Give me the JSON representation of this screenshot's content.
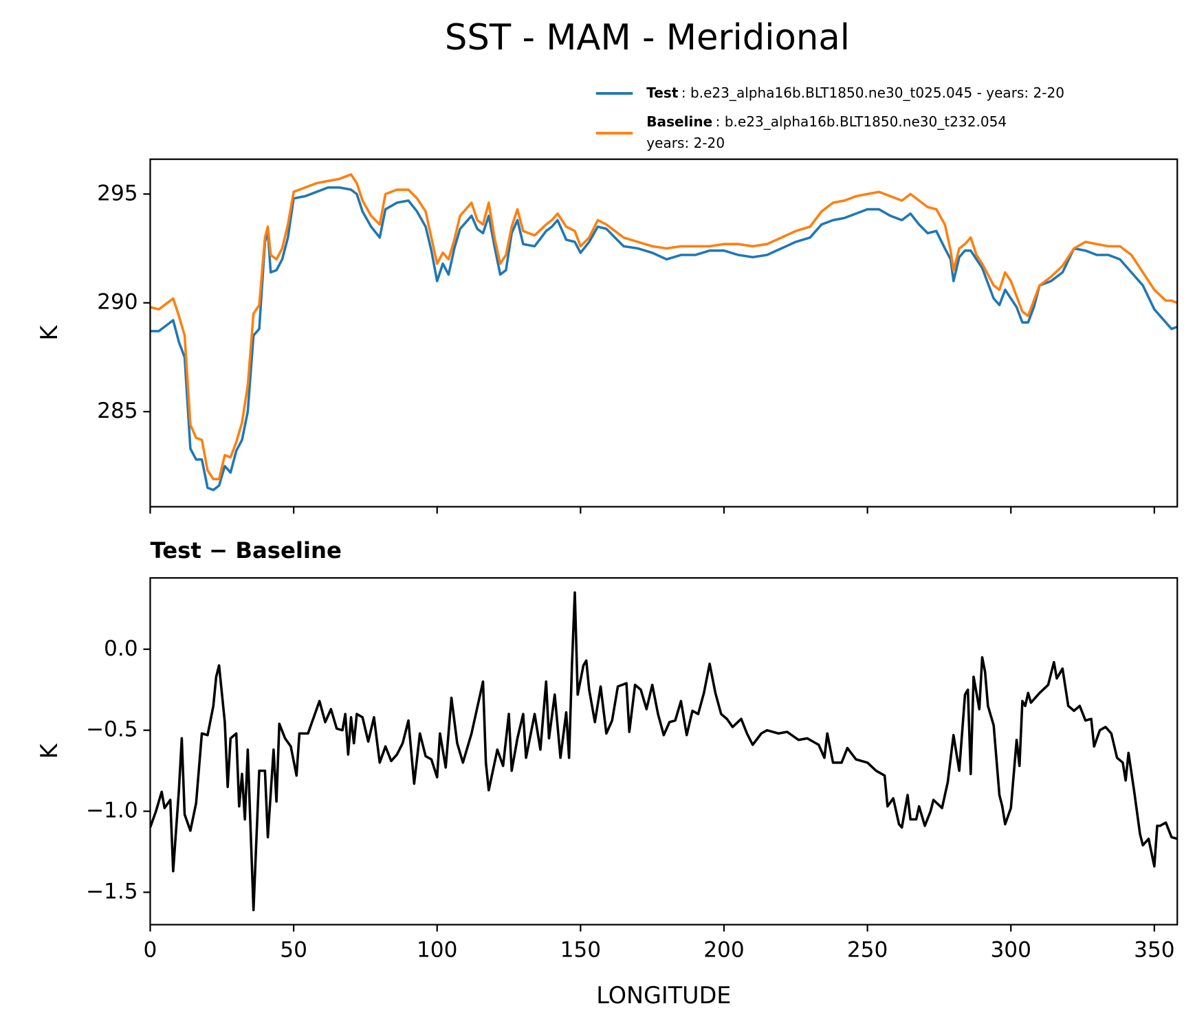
{
  "title": "SST - MAM - Meridional",
  "chart_data": [
    {
      "type": "line",
      "ylabel": "K",
      "xlim": [
        0,
        358
      ],
      "xticks": [
        0,
        50,
        100,
        150,
        200,
        250,
        300,
        350
      ],
      "show_xticklabels": false,
      "ylim": [
        280.63,
        296.6
      ],
      "yticks": [
        285,
        290,
        295
      ],
      "x": [
        0,
        3,
        6,
        8,
        10,
        12,
        14,
        16,
        18,
        20,
        22,
        24,
        26,
        28,
        30,
        32,
        34,
        36,
        38,
        40,
        41,
        42,
        44,
        46,
        48,
        50,
        54,
        58,
        62,
        66,
        70,
        72,
        74,
        77,
        80,
        82,
        86,
        90,
        93,
        96,
        98,
        100,
        102,
        104,
        106,
        108,
        112,
        114,
        116,
        118,
        120,
        122,
        124,
        126,
        128,
        130,
        134,
        138,
        140,
        142,
        145,
        148,
        150,
        153,
        156,
        159,
        162,
        165,
        170,
        175,
        180,
        185,
        190,
        195,
        200,
        205,
        210,
        215,
        220,
        225,
        230,
        234,
        238,
        242,
        246,
        250,
        254,
        258,
        262,
        265,
        268,
        271,
        274,
        277,
        279,
        280,
        282,
        284,
        286,
        288,
        290,
        292,
        294,
        296,
        298,
        300,
        302,
        304,
        306,
        308,
        310,
        314,
        318,
        322,
        326,
        330,
        334,
        338,
        342,
        346,
        350,
        354,
        356,
        358
      ],
      "series": [
        {
          "name": "Test",
          "label_lines": [
            ": b.e23_alpha16b.BLT1850.ne30_t025.045 - years: 2-20"
          ],
          "color": "#1f77b4",
          "values": [
            288.7,
            288.7,
            289.0,
            289.2,
            288.2,
            287.5,
            283.3,
            282.8,
            282.8,
            281.5,
            281.4,
            281.6,
            282.5,
            282.2,
            283.2,
            283.7,
            285.0,
            288.5,
            288.8,
            292.8,
            293.3,
            291.4,
            291.5,
            292.0,
            293.0,
            294.8,
            294.9,
            295.1,
            295.3,
            295.3,
            295.2,
            295.0,
            294.2,
            293.5,
            293.0,
            294.3,
            294.6,
            294.7,
            294.2,
            293.5,
            292.4,
            291.0,
            291.8,
            291.3,
            292.5,
            293.4,
            294.0,
            293.4,
            293.2,
            294.0,
            292.6,
            291.3,
            291.5,
            293.2,
            293.8,
            292.7,
            292.6,
            293.3,
            293.5,
            293.8,
            292.9,
            292.8,
            292.3,
            292.8,
            293.5,
            293.4,
            293.0,
            292.6,
            292.5,
            292.3,
            292.0,
            292.2,
            292.2,
            292.4,
            292.4,
            292.2,
            292.1,
            292.2,
            292.5,
            292.8,
            293.0,
            293.6,
            293.8,
            293.9,
            294.1,
            294.3,
            294.3,
            294.0,
            293.8,
            294.1,
            293.6,
            293.2,
            293.3,
            292.5,
            292.0,
            291.0,
            292.1,
            292.4,
            292.4,
            292.0,
            291.6,
            290.9,
            290.2,
            289.9,
            290.6,
            290.2,
            289.8,
            289.1,
            289.1,
            289.8,
            290.8,
            291.0,
            291.4,
            292.5,
            292.4,
            292.2,
            292.2,
            292.0,
            291.4,
            290.8,
            289.7,
            289.1,
            288.8,
            288.9
          ]
        },
        {
          "name": "Baseline",
          "label_lines": [
            ": b.e23_alpha16b.BLT1850.ne30_t232.054",
            "years: 2-20"
          ],
          "color": "#ff7f0e",
          "values": [
            289.8,
            289.7,
            290.0,
            290.2,
            289.4,
            288.5,
            284.4,
            283.8,
            283.7,
            282.3,
            281.9,
            281.9,
            283.0,
            282.9,
            283.6,
            284.5,
            286.2,
            289.5,
            289.9,
            293.0,
            293.5,
            292.2,
            292.0,
            292.5,
            293.6,
            295.1,
            295.3,
            295.5,
            295.6,
            295.7,
            295.9,
            295.5,
            294.7,
            294.0,
            293.6,
            295.0,
            295.2,
            295.2,
            294.8,
            294.2,
            293.0,
            291.8,
            292.3,
            292.0,
            292.9,
            294.0,
            294.6,
            293.8,
            293.6,
            294.6,
            293.0,
            291.8,
            292.2,
            293.5,
            294.3,
            293.3,
            293.1,
            293.6,
            293.8,
            294.1,
            293.5,
            293.3,
            292.6,
            293.0,
            293.8,
            293.6,
            293.3,
            293.0,
            292.8,
            292.6,
            292.5,
            292.6,
            292.6,
            292.6,
            292.7,
            292.7,
            292.6,
            292.7,
            293.0,
            293.3,
            293.5,
            294.2,
            294.6,
            294.7,
            294.9,
            295.0,
            295.1,
            294.9,
            294.7,
            295.0,
            294.7,
            294.4,
            294.3,
            293.6,
            292.4,
            291.5,
            292.5,
            292.7,
            293.0,
            292.2,
            291.8,
            291.3,
            290.8,
            290.6,
            291.4,
            291.0,
            290.3,
            289.6,
            289.4,
            290.1,
            290.8,
            291.2,
            291.7,
            292.5,
            292.8,
            292.7,
            292.6,
            292.6,
            292.2,
            291.4,
            290.6,
            290.1,
            290.1,
            290.0
          ]
        }
      ]
    },
    {
      "type": "line",
      "title": "Test − Baseline",
      "ylabel": "K",
      "xlabel": "LONGITUDE",
      "color": "#000000",
      "xlim": [
        0,
        358
      ],
      "xticks": [
        0,
        50,
        100,
        150,
        200,
        250,
        300,
        350
      ],
      "show_xticklabels": true,
      "ylim": [
        -1.7,
        0.44
      ],
      "yticks": [
        {
          "value": 0,
          "label": "0.0"
        },
        {
          "value": -0.5,
          "label": "−0.5"
        },
        {
          "value": -1.0,
          "label": "−1.0"
        },
        {
          "value": -1.5,
          "label": "−1.5"
        }
      ],
      "x": [
        0,
        2,
        4,
        5,
        7,
        8,
        10,
        11,
        12,
        14,
        16,
        18,
        20,
        22,
        23,
        24,
        26,
        27,
        28,
        30,
        31,
        32,
        33,
        34,
        36,
        38,
        40,
        41,
        43,
        44,
        45,
        47,
        49,
        51,
        52,
        55,
        57,
        59,
        61,
        63,
        65,
        67,
        68,
        69,
        70,
        71,
        72,
        74,
        76,
        78,
        80,
        82,
        84,
        86,
        88,
        90,
        92,
        94,
        96,
        98,
        100,
        101,
        103,
        105,
        107,
        109,
        112,
        116,
        117,
        118,
        121,
        123,
        125,
        126,
        128,
        130,
        131,
        134,
        136,
        138,
        139,
        141,
        143,
        145,
        146,
        147,
        148,
        149,
        151,
        152,
        153,
        155,
        157,
        159,
        161,
        163,
        166,
        167,
        169,
        171,
        173,
        175,
        177,
        179,
        181,
        183,
        185,
        187,
        189,
        191,
        193,
        195,
        197,
        199,
        201,
        203,
        206,
        208,
        210,
        213,
        215,
        219,
        222,
        226,
        229,
        233,
        235,
        236,
        238,
        241,
        243,
        246,
        250,
        253,
        256,
        257,
        259,
        261,
        262,
        264,
        265,
        267,
        268,
        270,
        272,
        273,
        276,
        278,
        280,
        282,
        284,
        285,
        286,
        287,
        289,
        290,
        291,
        292,
        294,
        296,
        297,
        298,
        300,
        302,
        303,
        304,
        305,
        306,
        307,
        310,
        313,
        315,
        316,
        318,
        320,
        322,
        324,
        326,
        328,
        329,
        331,
        333,
        335,
        337,
        339,
        340,
        341,
        343,
        345,
        346,
        348,
        350,
        351,
        352,
        354,
        356,
        358
      ],
      "values": [
        -1.1,
        -1.0,
        -0.88,
        -0.98,
        -0.93,
        -1.37,
        -0.87,
        -0.55,
        -1.02,
        -1.12,
        -0.95,
        -0.52,
        -0.53,
        -0.35,
        -0.17,
        -0.1,
        -0.45,
        -0.85,
        -0.55,
        -0.52,
        -0.97,
        -0.77,
        -1.05,
        -0.62,
        -1.61,
        -0.75,
        -0.75,
        -1.16,
        -0.62,
        -0.94,
        -0.46,
        -0.55,
        -0.6,
        -0.78,
        -0.52,
        -0.52,
        -0.42,
        -0.32,
        -0.45,
        -0.37,
        -0.49,
        -0.5,
        -0.4,
        -0.65,
        -0.42,
        -0.58,
        -0.4,
        -0.42,
        -0.57,
        -0.42,
        -0.7,
        -0.6,
        -0.69,
        -0.65,
        -0.58,
        -0.44,
        -0.83,
        -0.52,
        -0.66,
        -0.68,
        -0.79,
        -0.52,
        -0.73,
        -0.3,
        -0.58,
        -0.7,
        -0.52,
        -0.2,
        -0.7,
        -0.87,
        -0.62,
        -0.72,
        -0.4,
        -0.75,
        -0.55,
        -0.4,
        -0.67,
        -0.4,
        -0.62,
        -0.2,
        -0.55,
        -0.28,
        -0.67,
        -0.39,
        -0.67,
        -0.1,
        0.35,
        -0.28,
        -0.1,
        -0.07,
        -0.25,
        -0.45,
        -0.23,
        -0.52,
        -0.44,
        -0.23,
        -0.21,
        -0.51,
        -0.22,
        -0.25,
        -0.37,
        -0.22,
        -0.4,
        -0.53,
        -0.45,
        -0.44,
        -0.32,
        -0.53,
        -0.38,
        -0.4,
        -0.27,
        -0.09,
        -0.27,
        -0.4,
        -0.43,
        -0.48,
        -0.43,
        -0.52,
        -0.59,
        -0.52,
        -0.5,
        -0.52,
        -0.51,
        -0.56,
        -0.55,
        -0.59,
        -0.67,
        -0.52,
        -0.7,
        -0.7,
        -0.61,
        -0.68,
        -0.7,
        -0.75,
        -0.78,
        -0.97,
        -0.92,
        -1.08,
        -1.1,
        -0.9,
        -1.05,
        -1.05,
        -0.97,
        -1.09,
        -1.0,
        -0.93,
        -0.98,
        -0.82,
        -0.53,
        -0.75,
        -0.28,
        -0.25,
        -0.77,
        -0.17,
        -0.37,
        -0.05,
        -0.14,
        -0.35,
        -0.47,
        -0.9,
        -0.97,
        -1.08,
        -0.98,
        -0.56,
        -0.72,
        -0.32,
        -0.35,
        -0.27,
        -0.33,
        -0.27,
        -0.22,
        -0.08,
        -0.18,
        -0.12,
        -0.35,
        -0.38,
        -0.35,
        -0.44,
        -0.43,
        -0.6,
        -0.5,
        -0.48,
        -0.52,
        -0.67,
        -0.7,
        -0.81,
        -0.64,
        -0.88,
        -1.14,
        -1.21,
        -1.17,
        -1.34,
        -1.09,
        -1.09,
        -1.07,
        -1.16,
        -1.17
      ]
    }
  ]
}
